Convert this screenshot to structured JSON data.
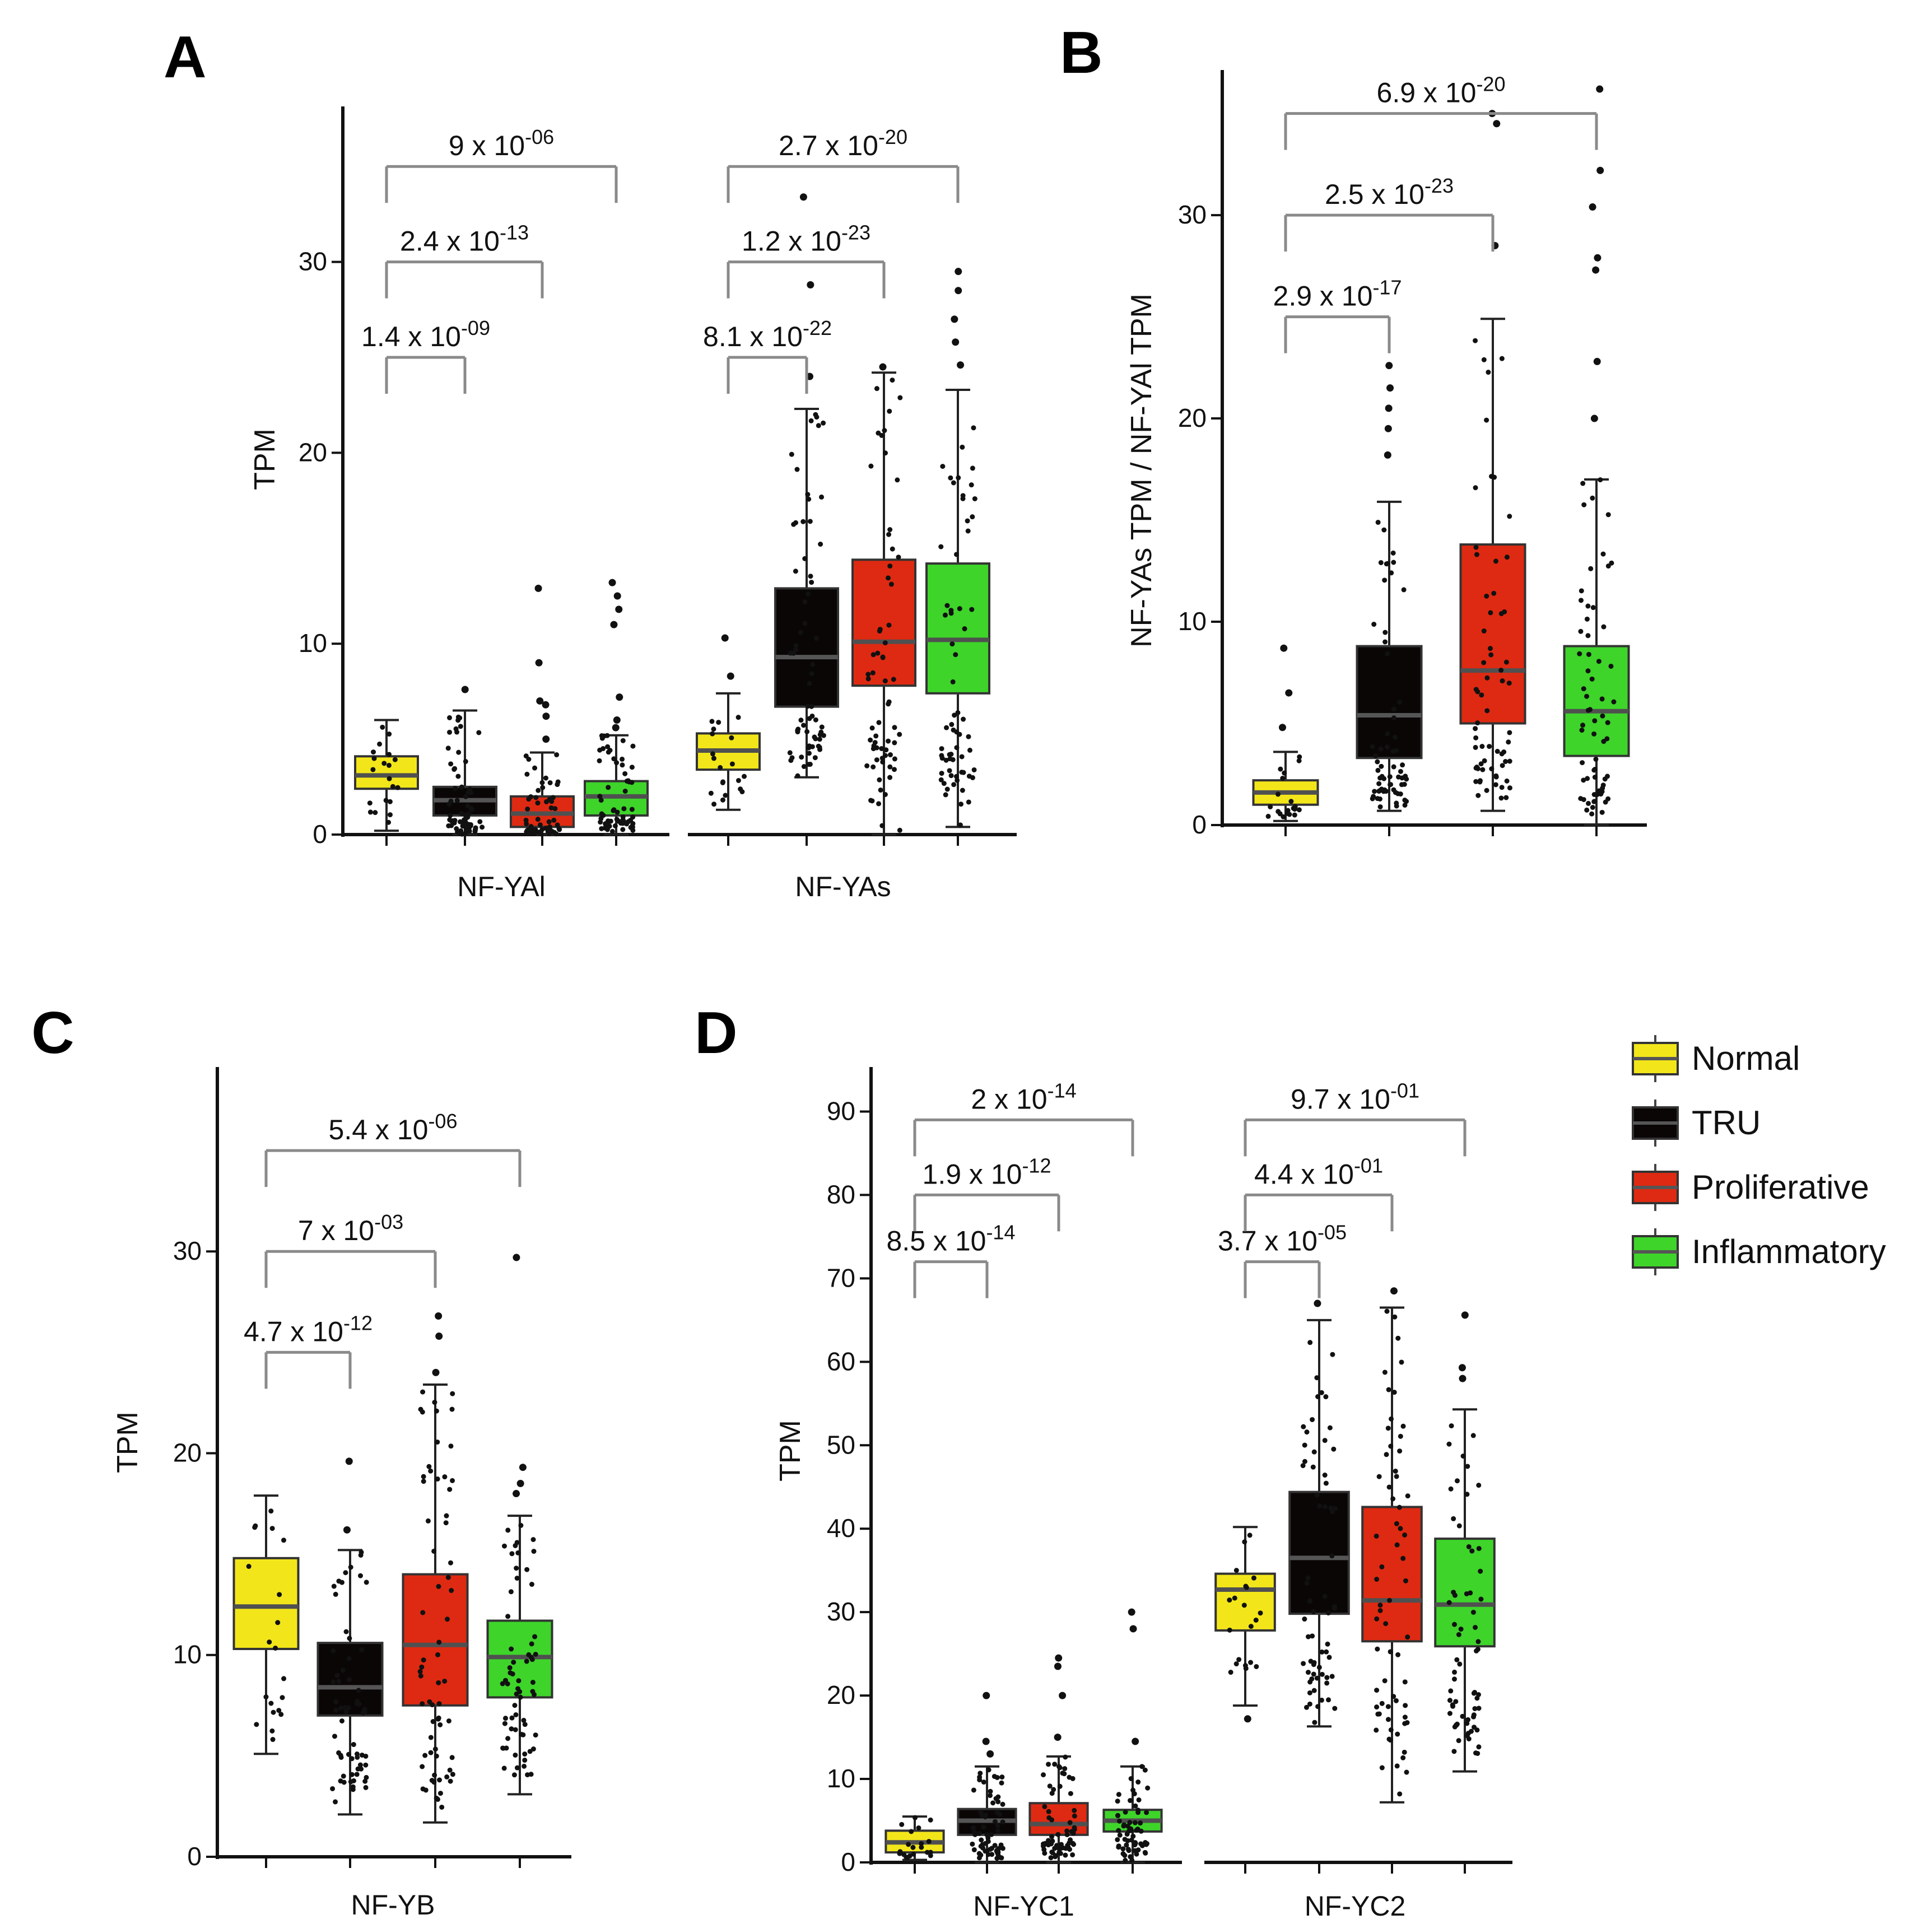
{
  "colors": {
    "Normal": "#f2e61a",
    "TRU": "#0a0606",
    "Proliferative": "#de2a12",
    "Inflammatory": "#3ed42a",
    "median_dark": "#555555",
    "median_light": "#505050"
  },
  "legend": {
    "items": [
      {
        "label": "Normal",
        "color": "#f2e61a"
      },
      {
        "label": "TRU",
        "color": "#0a0606"
      },
      {
        "label": "Proliferative",
        "color": "#de2a12"
      },
      {
        "label": "Inflammatory",
        "color": "#3ed42a"
      }
    ]
  },
  "chart_data": [
    {
      "panel": "A",
      "type": "box",
      "ylabel": "TPM",
      "ylim": [
        0,
        38
      ],
      "yticks": [
        0,
        10,
        20,
        30
      ],
      "groups": [
        {
          "label": "NF-YAl",
          "boxes": [
            {
              "category": "Normal",
              "min": 0.2,
              "q1": 2.4,
              "median": 3.1,
              "q3": 4.1,
              "max": 6.0,
              "outliers": []
            },
            {
              "category": "TRU",
              "min": 0.0,
              "q1": 1.0,
              "median": 1.8,
              "q3": 2.5,
              "max": 6.5,
              "outliers": [
                7.6
              ]
            },
            {
              "category": "Proliferative",
              "min": 0.0,
              "q1": 0.4,
              "median": 1.1,
              "q3": 2.0,
              "max": 4.3,
              "outliers": [
                5.0,
                6.2,
                6.8,
                7.0,
                9.0,
                12.9
              ]
            },
            {
              "category": "Inflammatory",
              "min": 0.0,
              "q1": 1.0,
              "median": 2.0,
              "q3": 2.8,
              "max": 5.2,
              "outliers": [
                5.6,
                6.0,
                7.2,
                11.0,
                11.8,
                12.5,
                13.2
              ]
            }
          ],
          "comparisons": [
            {
              "label": "1.4 x 10-09",
              "mantissa": "1.4 x 10",
              "exponent": "-09",
              "from": 0,
              "to": 1,
              "y": 25.0
            },
            {
              "label": "2.4 x 10-13",
              "mantissa": "2.4 x 10",
              "exponent": "-13",
              "from": 0,
              "to": 2,
              "y": 30.0
            },
            {
              "label": "9 x 10-06",
              "mantissa": "9 x 10",
              "exponent": "-06",
              "from": 0,
              "to": 3,
              "y": 35.0
            }
          ]
        },
        {
          "label": "NF-YAs",
          "boxes": [
            {
              "category": "Normal",
              "min": 1.3,
              "q1": 3.4,
              "median": 4.4,
              "q3": 5.3,
              "max": 7.4,
              "outliers": [
                8.3,
                10.3
              ]
            },
            {
              "category": "TRU",
              "min": 3.0,
              "q1": 6.7,
              "median": 9.3,
              "q3": 12.9,
              "max": 22.3,
              "outliers": [
                24.0,
                28.8,
                33.4
              ]
            },
            {
              "category": "Proliferative",
              "min": 0.0,
              "q1": 7.8,
              "median": 10.1,
              "q3": 14.4,
              "max": 24.2,
              "outliers": [
                24.5
              ]
            },
            {
              "category": "Inflammatory",
              "min": 0.4,
              "q1": 7.4,
              "median": 10.2,
              "q3": 14.2,
              "max": 23.3,
              "outliers": [
                24.6,
                25.8,
                27.0,
                28.5,
                29.5
              ]
            }
          ],
          "comparisons": [
            {
              "label": "8.1 x 10-22",
              "mantissa": "8.1 x 10",
              "exponent": "-22",
              "from": 0,
              "to": 1,
              "y": 25.0
            },
            {
              "label": "1.2 x 10-23",
              "mantissa": "1.2 x 10",
              "exponent": "-23",
              "from": 0,
              "to": 2,
              "y": 30.0
            },
            {
              "label": "2.7 x 10-20",
              "mantissa": "2.7 x 10",
              "exponent": "-20",
              "from": 0,
              "to": 3,
              "y": 35.0
            }
          ]
        }
      ]
    },
    {
      "panel": "B",
      "type": "box",
      "ylabel": "NF-YAs TPM / NF-YAl TPM",
      "ylim": [
        0,
        37
      ],
      "yticks": [
        0,
        10,
        20,
        30
      ],
      "groups": [
        {
          "label": "",
          "boxes": [
            {
              "category": "Normal",
              "min": 0.2,
              "q1": 1.0,
              "median": 1.6,
              "q3": 2.2,
              "max": 3.6,
              "outliers": [
                4.8,
                6.5,
                8.7
              ]
            },
            {
              "category": "TRU",
              "min": 0.7,
              "q1": 3.3,
              "median": 5.4,
              "q3": 8.8,
              "max": 15.9,
              "outliers": [
                18.2,
                19.5,
                20.5,
                21.5,
                22.6
              ]
            },
            {
              "category": "Proliferative",
              "min": 0.7,
              "q1": 5.0,
              "median": 7.6,
              "q3": 13.8,
              "max": 24.9,
              "outliers": [
                28.5,
                34.5,
                35.0
              ]
            },
            {
              "category": "Inflammatory",
              "min": 0.0,
              "q1": 3.4,
              "median": 5.6,
              "q3": 8.8,
              "max": 17.0,
              "outliers": [
                20.0,
                22.8,
                27.3,
                27.9,
                30.4,
                32.2,
                36.2
              ]
            }
          ],
          "comparisons": [
            {
              "label": "2.9 x 10-17",
              "mantissa": "2.9 x 10",
              "exponent": "-17",
              "from": 0,
              "to": 1,
              "y": 25.0
            },
            {
              "label": "2.5 x 10-23",
              "mantissa": "2.5 x 10",
              "exponent": "-23",
              "from": 0,
              "to": 2,
              "y": 30.0
            },
            {
              "label": "6.9 x 10-20",
              "mantissa": "6.9 x 10",
              "exponent": "-20",
              "from": 0,
              "to": 3,
              "y": 35.0
            }
          ]
        }
      ]
    },
    {
      "panel": "C",
      "type": "box",
      "ylabel": "TPM",
      "ylim": [
        0,
        39
      ],
      "yticks": [
        0,
        10,
        20,
        30
      ],
      "groups": [
        {
          "label": "NF-YB",
          "boxes": [
            {
              "category": "Normal",
              "min": 5.1,
              "q1": 10.3,
              "median": 12.4,
              "q3": 14.8,
              "max": 17.9,
              "outliers": []
            },
            {
              "category": "TRU",
              "min": 2.1,
              "q1": 7.0,
              "median": 8.4,
              "q3": 10.6,
              "max": 15.2,
              "outliers": [
                16.2,
                19.6
              ]
            },
            {
              "category": "Proliferative",
              "min": 1.7,
              "q1": 7.5,
              "median": 10.5,
              "q3": 14.0,
              "max": 23.4,
              "outliers": [
                24.0,
                25.8,
                26.8
              ]
            },
            {
              "category": "Inflammatory",
              "min": 3.1,
              "q1": 7.9,
              "median": 9.9,
              "q3": 11.7,
              "max": 16.9,
              "outliers": [
                18.0,
                18.5,
                19.3,
                29.7
              ]
            }
          ],
          "comparisons": [
            {
              "label": "4.7 x 10-12",
              "mantissa": "4.7 x 10",
              "exponent": "-12",
              "from": 0,
              "to": 1,
              "y": 25.0
            },
            {
              "label": "7 x 10-03",
              "mantissa": "7 x 10",
              "exponent": "-03",
              "from": 0,
              "to": 2,
              "y": 30.0
            },
            {
              "label": "5.4 x 10-06",
              "mantissa": "5.4 x 10",
              "exponent": "-06",
              "from": 0,
              "to": 3,
              "y": 35.0
            }
          ]
        }
      ]
    },
    {
      "panel": "D",
      "type": "box",
      "ylabel": "TPM",
      "ylim": [
        0,
        95
      ],
      "yticks": [
        0,
        10,
        20,
        30,
        40,
        50,
        60,
        70,
        80,
        90
      ],
      "groups": [
        {
          "label": "NF-YC1",
          "boxes": [
            {
              "category": "Normal",
              "min": 0.3,
              "q1": 1.2,
              "median": 2.4,
              "q3": 3.8,
              "max": 5.5,
              "outliers": []
            },
            {
              "category": "TRU",
              "min": 0.0,
              "q1": 3.3,
              "median": 5.0,
              "q3": 6.4,
              "max": 11.5,
              "outliers": [
                13.0,
                14.5,
                20.0
              ]
            },
            {
              "category": "Proliferative",
              "min": 0.0,
              "q1": 3.3,
              "median": 4.6,
              "q3": 7.1,
              "max": 12.7,
              "outliers": [
                15.0,
                20.0,
                23.5,
                24.5
              ]
            },
            {
              "category": "Inflammatory",
              "min": 0.0,
              "q1": 3.7,
              "median": 5.0,
              "q3": 6.3,
              "max": 11.5,
              "outliers": [
                14.5,
                28.0,
                30.0
              ]
            }
          ],
          "comparisons": [
            {
              "label": "8.5 x 10-14",
              "mantissa": "8.5 x 10",
              "exponent": "-14",
              "from": 0,
              "to": 1,
              "y": 72.0
            },
            {
              "label": "1.9 x 10-12",
              "mantissa": "1.9 x 10",
              "exponent": "-12",
              "from": 0,
              "to": 2,
              "y": 80.0
            },
            {
              "label": "2 x 10-14",
              "mantissa": "2 x 10",
              "exponent": "-14",
              "from": 0,
              "to": 3,
              "y": 89.0
            }
          ]
        },
        {
          "label": "NF-YC2",
          "boxes": [
            {
              "category": "Normal",
              "min": 18.8,
              "q1": 27.8,
              "median": 32.7,
              "q3": 34.6,
              "max": 40.2,
              "outliers": [
                17.2
              ]
            },
            {
              "category": "TRU",
              "min": 16.3,
              "q1": 29.8,
              "median": 36.5,
              "q3": 44.4,
              "max": 65.0,
              "outliers": [
                67.0
              ]
            },
            {
              "category": "Proliferative",
              "min": 7.2,
              "q1": 26.5,
              "median": 31.4,
              "q3": 42.6,
              "max": 66.5,
              "outliers": [
                68.5
              ]
            },
            {
              "category": "Inflammatory",
              "min": 10.9,
              "q1": 25.9,
              "median": 30.9,
              "q3": 38.8,
              "max": 54.3,
              "outliers": [
                58.0,
                59.3,
                65.6
              ]
            }
          ],
          "comparisons": [
            {
              "label": "3.7 x 10-05",
              "mantissa": "3.7 x 10",
              "exponent": "-05",
              "from": 0,
              "to": 1,
              "y": 72.0
            },
            {
              "label": "4.4 x 10-01",
              "mantissa": "4.4 x 10",
              "exponent": "-01",
              "from": 0,
              "to": 2,
              "y": 80.0
            },
            {
              "label": "9.7 x 10-01",
              "mantissa": "9.7 x 10",
              "exponent": "-01",
              "from": 0,
              "to": 3,
              "y": 89.0
            }
          ]
        }
      ]
    }
  ]
}
